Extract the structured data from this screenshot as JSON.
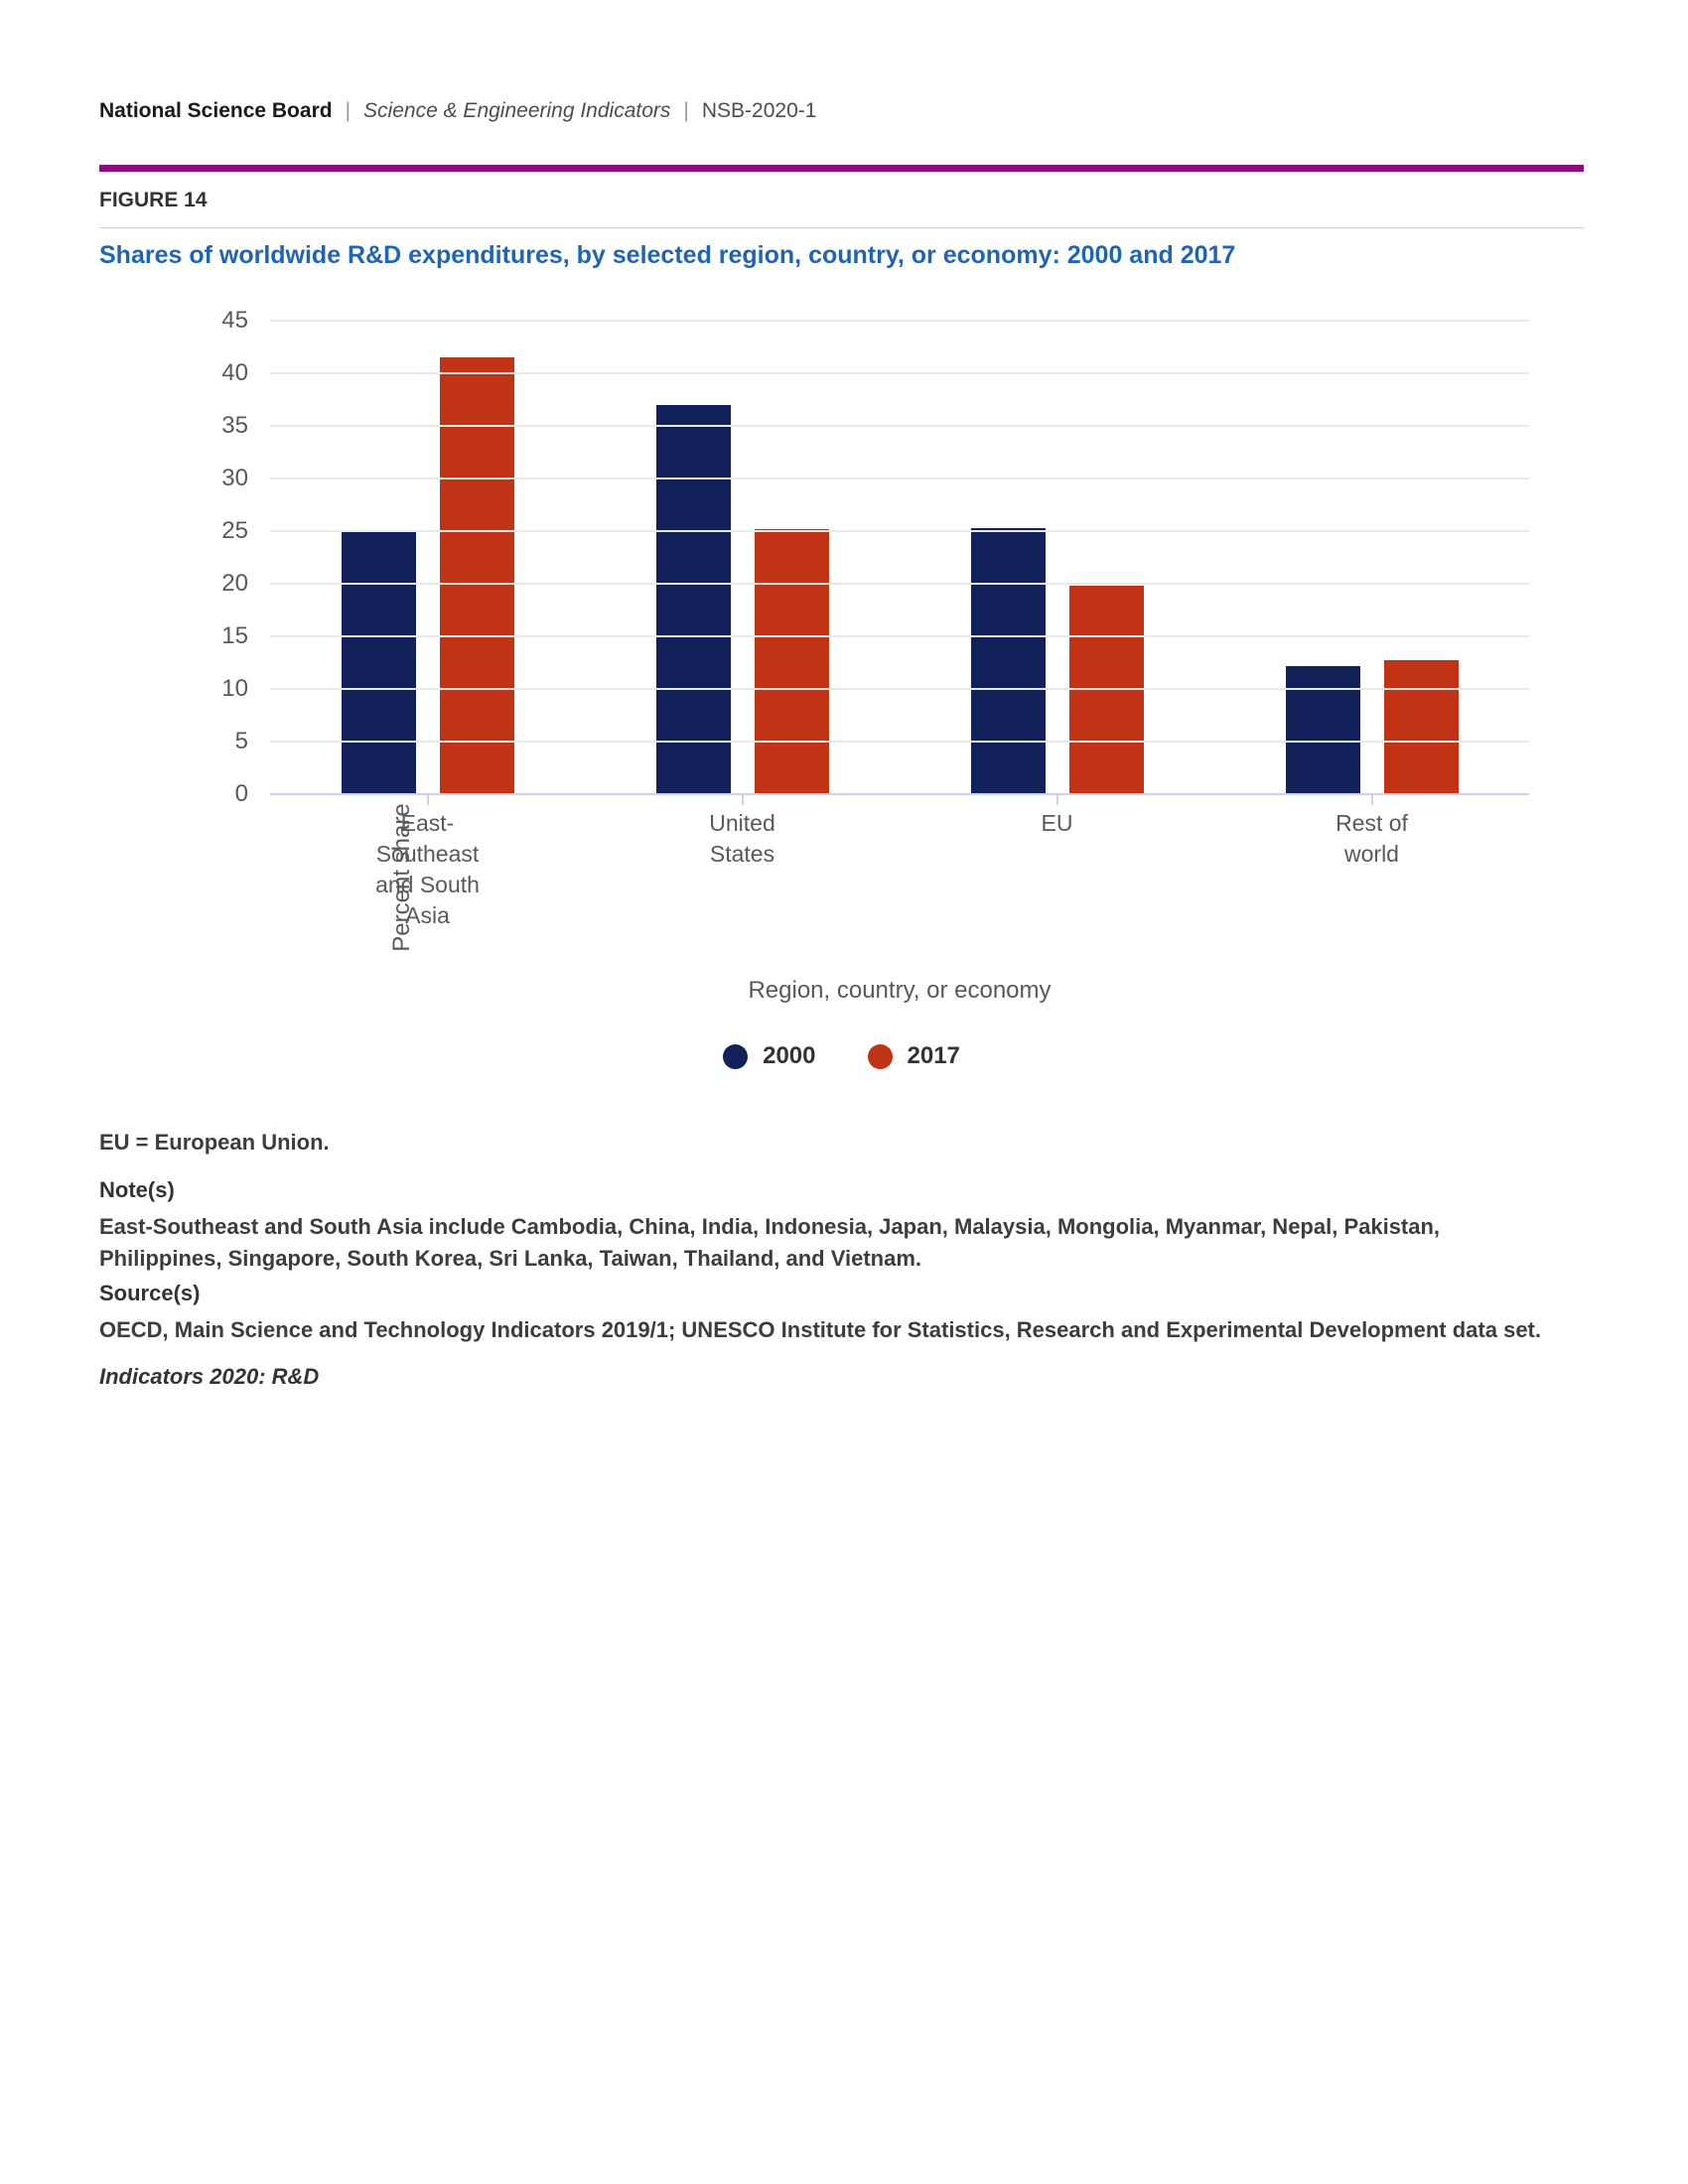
{
  "page": {
    "header": {
      "brand": "National Science Board",
      "separator": "|",
      "publication": "Science & Engineering Indicators",
      "report_id": "NSB-2020-1"
    },
    "figure_label": "FIGURE 14",
    "title": "Shares of worldwide R&D expenditures, by selected region, country, or economy: 2000 and 2017",
    "footer": {
      "abbreviation": "EU = European Union.",
      "notes_heading": "Note(s)",
      "notes": "East-Southeast and South Asia include Cambodia, China, India, Indonesia, Japan, Malaysia, Mongolia, Myanmar, Nepal, Pakistan, Philippines, Singapore, South Korea, Sri Lanka, Taiwan, Thailand, and Vietnam.",
      "sources_heading": "Source(s)",
      "sources": "OECD, Main Science and Technology Indicators 2019/1; UNESCO Institute for Statistics, Research and Experimental Development data set.",
      "tagline": "Indicators 2020: R&D"
    },
    "colors": {
      "accent_rule": "#8C0981",
      "title_blue": "#2065B1",
      "gridline": "#E9E9E9",
      "baseline": "#C9D2EA"
    }
  },
  "chart_data": {
    "type": "bar",
    "title": "Shares of worldwide R&D expenditures, by selected region, country, or economy: 2000 and 2017",
    "categories": [
      "East-Southeast and South Asia",
      "United States",
      "EU",
      "Rest of world"
    ],
    "category_label_lines": [
      [
        "East-",
        "Southeast",
        "and South",
        "Asia"
      ],
      [
        "United",
        "States"
      ],
      [
        "EU"
      ],
      [
        "Rest of",
        "world"
      ]
    ],
    "series": [
      {
        "name": "2000",
        "color": "#13215A",
        "values": [
          25.1,
          37.0,
          25.3,
          12.2
        ]
      },
      {
        "name": "2017",
        "color": "#C03315",
        "values": [
          41.5,
          25.2,
          19.8,
          12.7
        ]
      }
    ],
    "xlabel": "Region, country, or economy",
    "ylabel": "Percent share",
    "ylim": [
      0,
      45
    ],
    "yticks": [
      0,
      5,
      10,
      15,
      20,
      25,
      30,
      35,
      40,
      45
    ],
    "grid": true,
    "legend_position": "bottom"
  }
}
